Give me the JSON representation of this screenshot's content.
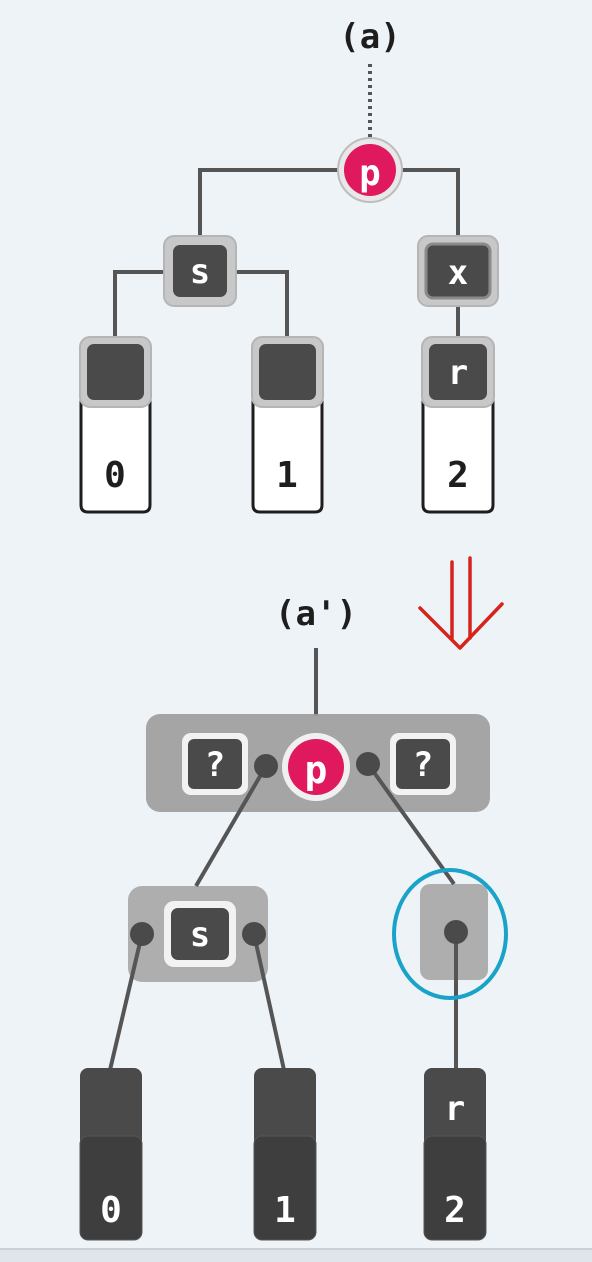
{
  "colors": {
    "background": "#eef3f8",
    "node_dark": "#4a4a4a",
    "node_border": "#9a9a9a",
    "group_fill": "#9e9e9e",
    "highlight_pink": "#e0185e",
    "arrow_red": "#d6241c",
    "circle_blue": "#1aa3c8",
    "edge": "#555555"
  },
  "top_tree": {
    "root_label": "(a)",
    "p_label": "p",
    "s_label": "s",
    "x_label": "x",
    "r_label": "r",
    "leaves": [
      "0",
      "1",
      "2"
    ]
  },
  "transform_arrow": {
    "icon": "double-down-arrow-icon"
  },
  "bottom_tree": {
    "root_label": "(a')",
    "p_label": "p",
    "hole_left": "?",
    "hole_right": "?",
    "s_label": "s",
    "r_label": "r",
    "leaves": [
      "0",
      "1",
      "2"
    ]
  }
}
